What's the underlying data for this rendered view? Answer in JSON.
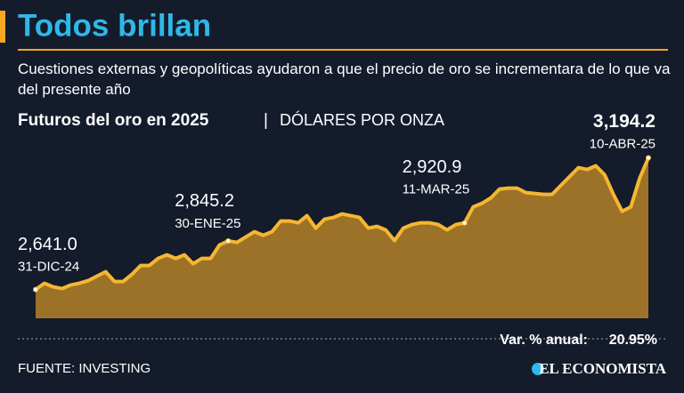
{
  "title": "Todos brillan",
  "subtitle": "Cuestiones externas y geopolíticas ayudaron a que el precio de oro se incrementara de lo que va del presente año",
  "chart_data": {
    "type": "area",
    "title": "Futuros del oro en 2025",
    "unit": "DÓLARES POR ONZA",
    "color": "#f5b731",
    "fill": "#9c7228",
    "ylim": [
      2520,
      3200
    ],
    "categories": [
      "31-DIC-24",
      null,
      null,
      null,
      null,
      null,
      null,
      null,
      null,
      null,
      null,
      null,
      null,
      null,
      null,
      null,
      null,
      null,
      null,
      null,
      null,
      null,
      "30-ENE-25",
      null,
      null,
      null,
      null,
      null,
      null,
      null,
      null,
      null,
      null,
      null,
      null,
      null,
      null,
      null,
      null,
      null,
      null,
      null,
      null,
      null,
      null,
      null,
      null,
      null,
      null,
      "11-MAR-25",
      null,
      null,
      null,
      null,
      null,
      null,
      null,
      null,
      null,
      null,
      null,
      null,
      null,
      null,
      null,
      null,
      null,
      null,
      null,
      null,
      "10-ABR-25"
    ],
    "values": [
      2641.0,
      2667.2,
      2652.2,
      2644.7,
      2659.7,
      2667.2,
      2678.4,
      2697.1,
      2715.8,
      2674.6,
      2674.6,
      2704.5,
      2741.9,
      2741.9,
      2771.8,
      2786.8,
      2771.8,
      2786.8,
      2749.4,
      2771.8,
      2771.8,
      2827.9,
      2845.2,
      2839.1,
      2861.5,
      2884.0,
      2869.0,
      2884.0,
      2928.8,
      2928.8,
      2921.4,
      2951.3,
      2898.9,
      2936.3,
      2943.8,
      2958.7,
      2951.3,
      2943.8,
      2898.9,
      2906.4,
      2891.4,
      2846.6,
      2898.9,
      2913.9,
      2921.4,
      2921.4,
      2913.9,
      2891.4,
      2913.9,
      2920.9,
      2988.6,
      3003.6,
      3026.0,
      3063.4,
      3067.1,
      3067.1,
      3048.4,
      3044.7,
      3041.0,
      3041.0,
      3078.3,
      3115.7,
      3153.1,
      3145.6,
      3160.6,
      3123.2,
      3041.0,
      2970.0,
      2988.6,
      3108.3,
      3194.2
    ],
    "value_labels": [
      "2,641.0",
      null,
      null,
      null,
      null,
      null,
      null,
      null,
      null,
      null,
      null,
      null,
      null,
      null,
      null,
      null,
      null,
      null,
      null,
      null,
      null,
      null,
      "2,845.2",
      null,
      null,
      null,
      null,
      null,
      null,
      null,
      null,
      null,
      null,
      null,
      null,
      null,
      null,
      null,
      null,
      null,
      null,
      null,
      null,
      null,
      null,
      null,
      null,
      null,
      null,
      "2,920.9",
      null,
      null,
      null,
      null,
      null,
      null,
      null,
      null,
      null,
      null,
      null,
      null,
      null,
      null,
      null,
      null,
      null,
      null,
      null,
      null,
      "3,194.2"
    ],
    "annual_change_label": "Var. % anual:",
    "annual_change": "20.95%"
  },
  "source": "FUENTE: INVESTING",
  "logo": "EL ECONOMISTA"
}
